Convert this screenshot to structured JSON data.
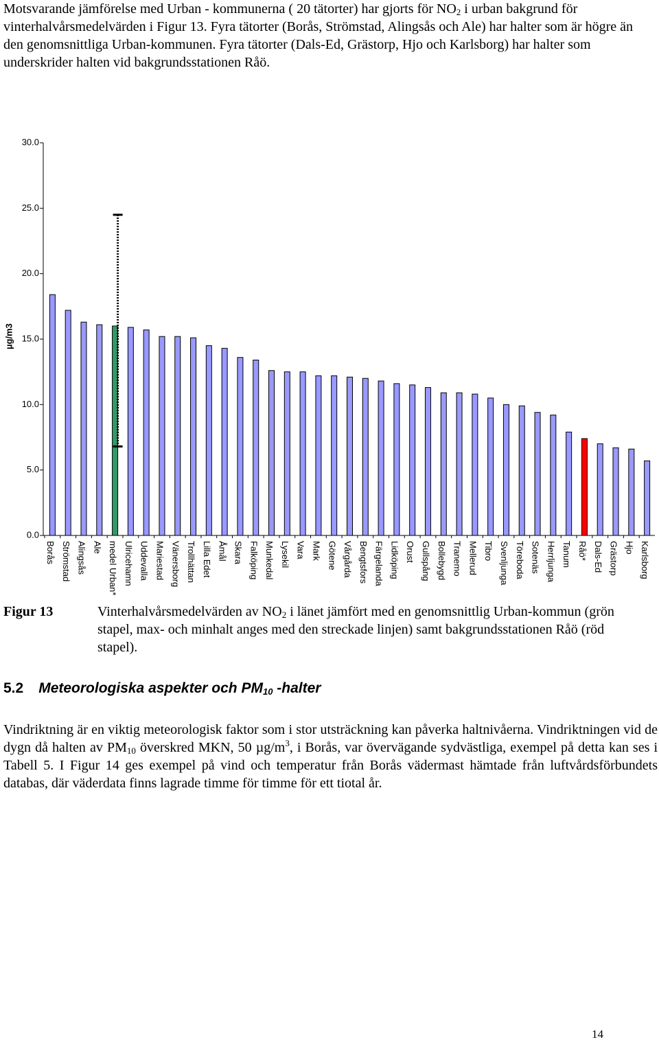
{
  "intro": [
    "Motsvarande jämförelse med Urban - kommunerna ( 20 tätorter) har gjorts för NO",
    "2",
    " i urban bakgrund för vinterhalvårsmedelvärden i Figur 13. Fyra tätorter (Borås, Strömstad, Alingsås och Ale) har halter som är högre än den genomsnittliga Urban-kommunen. Fyra tätorter (Dals-Ed, Grästorp, Hjo och Karlsborg) har halter som underskrider halten vid bakgrundsstationen Råö."
  ],
  "chart_data": {
    "type": "bar",
    "ylabel": "µg/m3",
    "categories": [
      "Borås",
      "Strömstad",
      "Alingsås",
      "Ale",
      "medel Urban*",
      "Ulricehamn",
      "Uddevalla",
      "Mariestad",
      "Vänersborg",
      "Trollhättan",
      "Lilla Edet",
      "Åmål",
      "Skara",
      "Falköping",
      "Munkedal",
      "Lysekil",
      "Vara",
      "Mark",
      "Götene",
      "Vårgårda",
      "Bengtsfors",
      "Färgelanda",
      "Lidköping",
      "Orust",
      "Gullspång",
      "Bollebygd",
      "Tranemo",
      "Mellerud",
      "Tibro",
      "Svenljunga",
      "Töreboda",
      "Sotenäs",
      "Herrljunga",
      "Tanum",
      "Råö*",
      "Dals-Ed",
      "Grästorp",
      "Hjo",
      "Karlsborg"
    ],
    "values": [
      18.4,
      17.2,
      16.3,
      16.1,
      16.0,
      15.9,
      15.7,
      15.2,
      15.2,
      15.1,
      14.5,
      14.3,
      13.6,
      13.4,
      12.6,
      12.5,
      12.5,
      12.2,
      12.2,
      12.1,
      12.0,
      11.8,
      11.6,
      11.5,
      11.3,
      10.9,
      10.9,
      10.8,
      10.5,
      10.0,
      9.9,
      9.4,
      9.2,
      7.9,
      7.4,
      7.0,
      6.7,
      6.6,
      5.7
    ],
    "colors": [
      "#9999ff",
      "#9999ff",
      "#9999ff",
      "#9999ff",
      "#339966",
      "#9999ff",
      "#9999ff",
      "#9999ff",
      "#9999ff",
      "#9999ff",
      "#9999ff",
      "#9999ff",
      "#9999ff",
      "#9999ff",
      "#9999ff",
      "#9999ff",
      "#9999ff",
      "#9999ff",
      "#9999ff",
      "#9999ff",
      "#9999ff",
      "#9999ff",
      "#9999ff",
      "#9999ff",
      "#9999ff",
      "#9999ff",
      "#9999ff",
      "#9999ff",
      "#9999ff",
      "#9999ff",
      "#9999ff",
      "#9999ff",
      "#9999ff",
      "#9999ff",
      "#ff0000",
      "#9999ff",
      "#9999ff",
      "#9999ff",
      "#9999ff"
    ],
    "range_low": [
      null,
      null,
      null,
      null,
      6.8,
      null,
      null,
      null,
      null,
      null,
      null,
      null,
      null,
      null,
      null,
      null,
      null,
      null,
      null,
      null,
      null,
      null,
      null,
      null,
      null,
      null,
      null,
      null,
      null,
      null,
      null,
      null,
      null,
      null,
      null,
      null,
      null,
      null,
      null
    ],
    "range_high": [
      null,
      null,
      null,
      null,
      24.5,
      null,
      null,
      null,
      null,
      null,
      null,
      null,
      null,
      null,
      null,
      null,
      null,
      null,
      null,
      null,
      null,
      null,
      null,
      null,
      null,
      null,
      null,
      null,
      null,
      null,
      null,
      null,
      null,
      null,
      null,
      null,
      null,
      null,
      null
    ],
    "ylim": [
      0,
      30
    ],
    "yticks": [
      {
        "value": 0,
        "label": "0.0"
      },
      {
        "value": 5,
        "label": "5.0"
      },
      {
        "value": 10,
        "label": "10.0"
      },
      {
        "value": 15,
        "label": "15.0"
      },
      {
        "value": 20,
        "label": "20.0"
      },
      {
        "value": 25,
        "label": "25.0"
      },
      {
        "value": 30,
        "label": "30.0"
      }
    ],
    "grid": false
  },
  "caption": {
    "label": "Figur 13",
    "text": [
      "Vinterhalvårsmedelvärden av NO",
      "2",
      " i länet jämfört med en genomsnittlig Urban-kommun (grön stapel, max- och minhalt anges med den streckade linjen) samt bakgrundsstationen Råö (röd stapel)."
    ]
  },
  "heading": {
    "number": "5.2",
    "text": [
      "Meteorologiska aspekter och PM",
      "10",
      " -halter"
    ]
  },
  "body": [
    "Vindriktning är en viktig meteorologisk faktor som i stor utsträckning kan påverka haltnivåerna. Vindriktningen vid de dygn då halten av PM",
    "10",
    " överskred MKN, 50 µg/m",
    "3",
    ", i Borås, var övervägande sydvästliga, exempel på detta kan ses i Tabell 5. I Figur 14 ges exempel på vind och temperatur från Borås vädermast hämtade från luftvårdsförbundets databas, där väderdata finns lagrade timme för timme för ett tiotal år."
  ],
  "page_number": "14"
}
